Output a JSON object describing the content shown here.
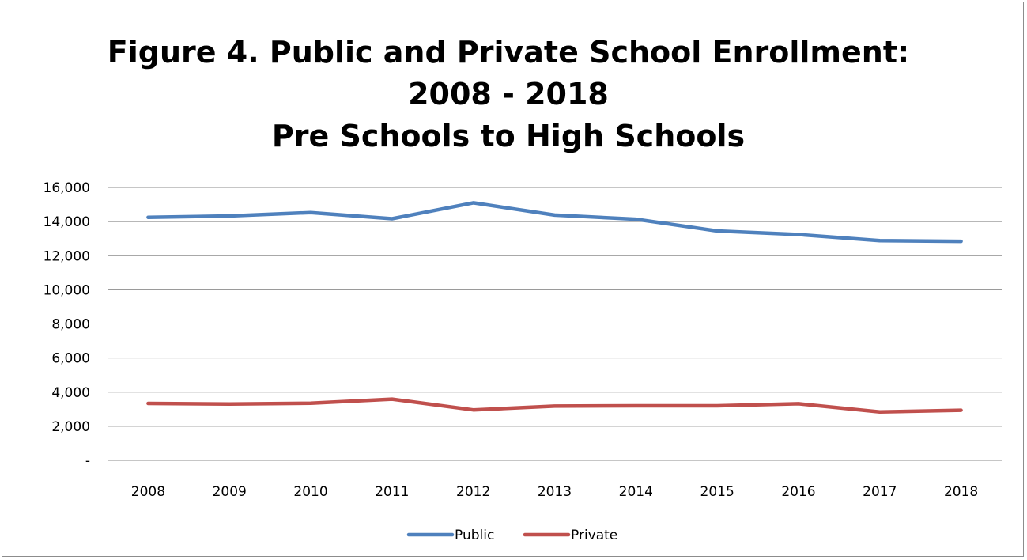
{
  "chart_data": {
    "type": "line",
    "title": [
      "Figure 4. Public and Private School Enrollment:",
      "2008 - 2018",
      "Pre Schools to High Schools"
    ],
    "categories": [
      "2008",
      "2009",
      "2010",
      "2011",
      "2012",
      "2013",
      "2014",
      "2015",
      "2016",
      "2017",
      "2018"
    ],
    "series": [
      {
        "name": "Public",
        "color": "#4f81bd",
        "values": [
          14250,
          14330,
          14530,
          14170,
          15100,
          14380,
          14140,
          13450,
          13240,
          12880,
          12840
        ]
      },
      {
        "name": "Private",
        "color": "#c0504d",
        "values": [
          3340,
          3300,
          3350,
          3590,
          2960,
          3180,
          3200,
          3200,
          3320,
          2840,
          2940
        ]
      }
    ],
    "y_ticks": [
      "-",
      "2,000",
      "4,000",
      "6,000",
      "8,000",
      "10,000",
      "12,000",
      "14,000",
      "16,000"
    ],
    "ylim": [
      0,
      16000
    ],
    "xlabel": "",
    "ylabel": "",
    "grid": true,
    "legend": "bottom"
  }
}
